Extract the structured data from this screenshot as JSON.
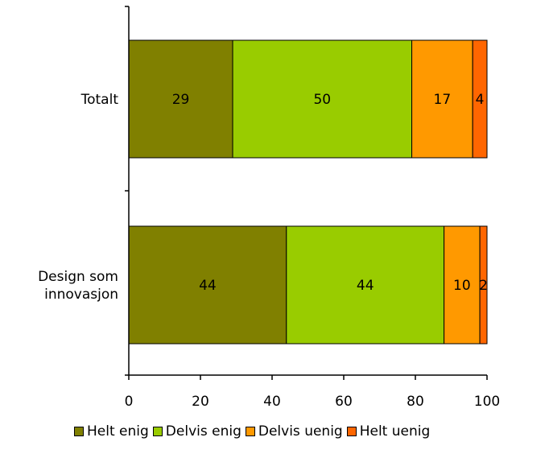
{
  "chart_data": {
    "type": "bar",
    "orientation": "horizontal",
    "stacked": true,
    "categories": [
      "Totalt",
      "Design som innovasjon"
    ],
    "category_lines": [
      [
        "Totalt"
      ],
      [
        "Design som",
        "innovasjon"
      ]
    ],
    "series": [
      {
        "name": "Helt enig",
        "color": "#808000",
        "values": [
          29,
          44
        ]
      },
      {
        "name": "Delvis enig",
        "color": "#99cc00",
        "values": [
          50,
          44
        ]
      },
      {
        "name": "Delvis uenig",
        "color": "#ff9900",
        "values": [
          17,
          10
        ]
      },
      {
        "name": "Helt uenig",
        "color": "#ff6600",
        "values": [
          4,
          2
        ]
      }
    ],
    "xlim": [
      0,
      100
    ],
    "xticks": [
      0,
      20,
      40,
      60,
      80,
      100
    ],
    "grid": false,
    "legend_position": "bottom"
  }
}
